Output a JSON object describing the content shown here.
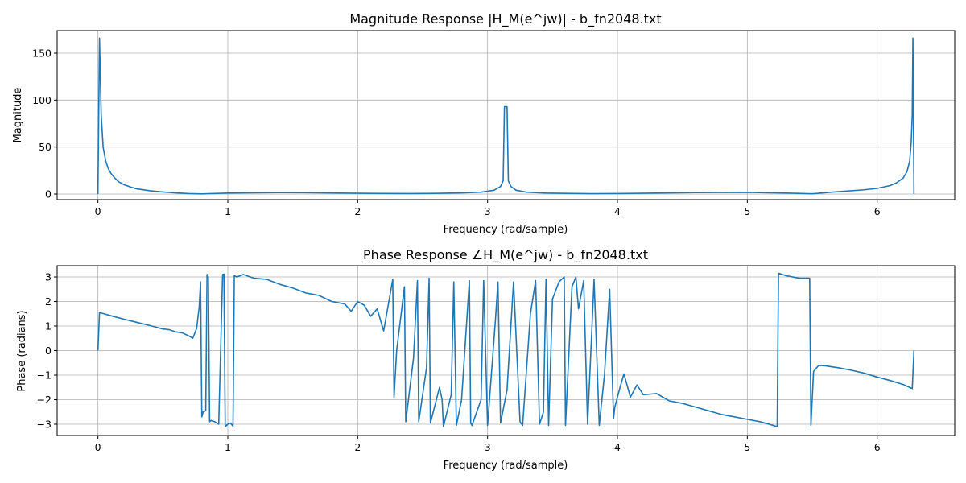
{
  "colors": {
    "series": "#1f77b4",
    "grid": "#b0b0b0",
    "background": "#ffffff"
  },
  "chart_data": [
    {
      "type": "line",
      "title": "Magnitude Response |H_M(e^jw)| - b_fn2048.txt",
      "xlabel": "Frequency (rad/sample)",
      "ylabel": "Magnitude",
      "xlim": [
        -0.314,
        6.597
      ],
      "ylim": [
        -6,
        174
      ],
      "xticks": [
        0,
        1,
        2,
        3,
        4,
        5,
        6
      ],
      "yticks": [
        0,
        50,
        100,
        150
      ],
      "grid": true,
      "series": [
        {
          "x": [
            0,
            0.012,
            0.025,
            0.04,
            0.06,
            0.08,
            0.1,
            0.13,
            0.16,
            0.2,
            0.25,
            0.3,
            0.4,
            0.5,
            0.6,
            0.7,
            0.8,
            0.9,
            1.0,
            1.2,
            1.4,
            1.6,
            1.8,
            2.0,
            2.2,
            2.4,
            2.6,
            2.8,
            2.95,
            3.05,
            3.1,
            3.12,
            3.13,
            3.15,
            3.16,
            3.18,
            3.22,
            3.3,
            3.45,
            3.6,
            3.8,
            4.0,
            4.3,
            4.6,
            5.0,
            5.3,
            5.5,
            5.7,
            5.9,
            6.0,
            6.1,
            6.15,
            6.2,
            6.23,
            6.25,
            6.262,
            6.27,
            6.275,
            6.283
          ],
          "y": [
            0,
            166,
            85,
            50,
            35,
            27,
            22,
            17,
            13,
            10,
            7.5,
            5.5,
            3.5,
            2.2,
            1.2,
            0.5,
            0.2,
            0.6,
            1.0,
            1.3,
            1.5,
            1.4,
            1.1,
            0.8,
            0.6,
            0.5,
            0.7,
            1.2,
            2.0,
            4.0,
            8.0,
            14,
            93,
            93,
            14,
            8.0,
            4.0,
            2.0,
            1.0,
            0.7,
            0.4,
            0.5,
            1.0,
            1.5,
            1.8,
            1.0,
            0.3,
            2.5,
            4.5,
            6.0,
            9.0,
            12,
            17,
            24,
            35,
            55,
            85,
            166,
            0
          ]
        }
      ]
    },
    {
      "type": "line",
      "title": "Phase Response ∠H_M(e^jw) - b_fn2048.txt",
      "xlabel": "Frequency (rad/sample)",
      "ylabel": "Phase (radians)",
      "xlim": [
        -0.314,
        6.597
      ],
      "ylim": [
        -3.46,
        3.46
      ],
      "xticks": [
        0,
        1,
        2,
        3,
        4,
        5,
        6
      ],
      "yticks": [
        -3,
        -2,
        -1,
        0,
        1,
        2,
        3
      ],
      "grid": true,
      "series": [
        {
          "x": [
            0,
            0.012,
            0.1,
            0.2,
            0.3,
            0.4,
            0.45,
            0.5,
            0.55,
            0.6,
            0.65,
            0.7,
            0.73,
            0.76,
            0.78,
            0.79,
            0.8,
            0.81,
            0.83,
            0.84,
            0.85,
            0.86,
            0.87,
            0.9,
            0.93,
            0.96,
            0.97,
            0.98,
            0.99,
            1.0,
            1.02,
            1.04,
            1.05,
            1.07,
            1.12,
            1.2,
            1.3,
            1.4,
            1.5,
            1.6,
            1.7,
            1.8,
            1.9,
            1.95,
            2.0,
            2.05,
            2.1,
            2.15,
            2.2,
            2.27,
            2.28,
            2.3,
            2.36,
            2.37,
            2.43,
            2.46,
            2.47,
            2.53,
            2.55,
            2.56,
            2.63,
            2.65,
            2.66,
            2.72,
            2.74,
            2.76,
            2.8,
            2.86,
            2.87,
            2.88,
            2.95,
            2.97,
            3.0,
            3.06,
            3.08,
            3.1,
            3.15,
            3.2,
            3.25,
            3.27,
            3.33,
            3.37,
            3.4,
            3.43,
            3.45,
            3.47,
            3.5,
            3.55,
            3.59,
            3.6,
            3.65,
            3.68,
            3.7,
            3.74,
            3.77,
            3.8,
            3.82,
            3.86,
            3.9,
            3.94,
            3.97,
            3.98,
            4.02,
            4.05,
            4.1,
            4.15,
            4.2,
            4.3,
            4.4,
            4.5,
            4.6,
            4.7,
            4.8,
            4.9,
            5.0,
            5.1,
            5.2,
            5.23,
            5.24,
            5.3,
            5.4,
            5.48,
            5.49,
            5.51,
            5.55,
            5.6,
            5.7,
            5.8,
            5.9,
            6.0,
            6.1,
            6.2,
            6.27,
            6.283
          ],
          "y": [
            0,
            1.55,
            1.42,
            1.28,
            1.15,
            1.02,
            0.95,
            0.88,
            0.85,
            0.76,
            0.72,
            0.6,
            0.5,
            0.9,
            1.8,
            2.8,
            -2.7,
            -2.5,
            -2.45,
            3.1,
            3.0,
            -2.9,
            -2.85,
            -2.9,
            -3.0,
            3.1,
            3.12,
            -3.1,
            -3.05,
            -3.0,
            -2.95,
            -3.08,
            3.05,
            3.0,
            3.1,
            2.95,
            2.9,
            2.7,
            2.55,
            2.35,
            2.25,
            2.0,
            1.9,
            1.6,
            2.0,
            1.85,
            1.4,
            1.7,
            0.8,
            2.9,
            -1.9,
            0.0,
            2.6,
            -2.9,
            -0.3,
            2.85,
            -2.9,
            -0.7,
            2.95,
            -2.95,
            -1.5,
            -2.0,
            -3.1,
            -1.8,
            2.8,
            -3.05,
            -2.0,
            2.85,
            -2.95,
            -3.05,
            -2.0,
            2.85,
            -3.05,
            1.2,
            2.8,
            -2.95,
            -1.6,
            2.8,
            -2.9,
            -3.05,
            1.5,
            2.85,
            -3.0,
            -2.5,
            2.9,
            -3.05,
            2.1,
            2.8,
            3.0,
            -3.05,
            2.6,
            3.0,
            1.7,
            2.85,
            -3.0,
            0.5,
            2.9,
            -3.05,
            -1.0,
            2.5,
            -2.75,
            -2.3,
            -1.5,
            -0.95,
            -1.9,
            -1.4,
            -1.8,
            -1.75,
            -2.05,
            -2.15,
            -2.3,
            -2.45,
            -2.6,
            -2.7,
            -2.8,
            -2.9,
            -3.05,
            -3.1,
            3.15,
            3.05,
            2.95,
            2.95,
            -3.05,
            -0.85,
            -0.6,
            -0.62,
            -0.7,
            -0.8,
            -0.92,
            -1.08,
            -1.22,
            -1.38,
            -1.55,
            0.0
          ]
        }
      ]
    }
  ]
}
